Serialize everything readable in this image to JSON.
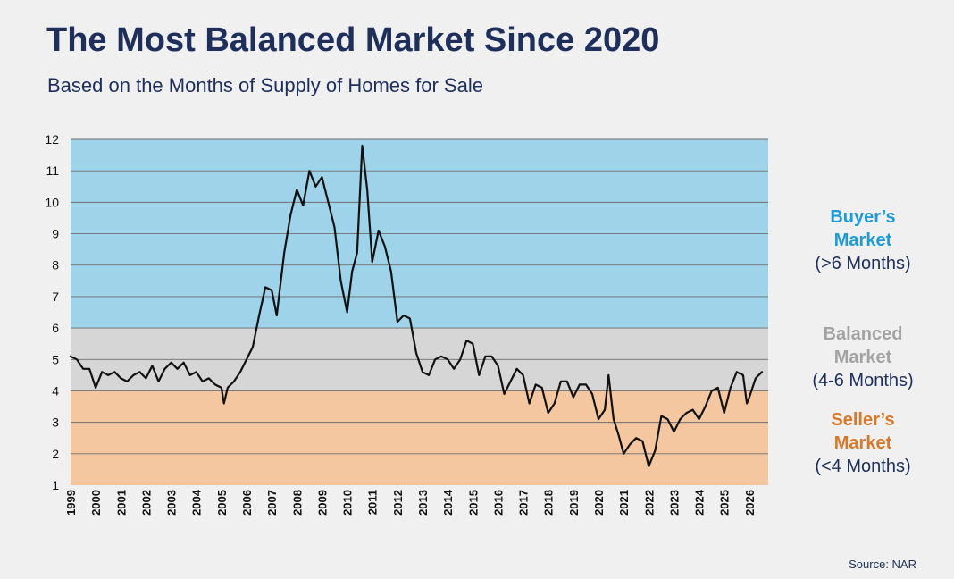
{
  "title": "The Most Balanced Market Since 2020",
  "subtitle": "Based on the Months of Supply of Homes for Sale",
  "source": "Source: NAR",
  "colors": {
    "buyers_zone": "#9ed3ea",
    "balanced_zone": "#d6d6d6",
    "sellers_zone": "#f4c7a1",
    "line": "#111111",
    "buyers_text": "#1e9bd7",
    "balanced_text": "#a3a3a3",
    "sellers_text": "#d9782a",
    "title_text": "#1f2f5c"
  },
  "legend": {
    "buyers": {
      "line1": "Buyer’s",
      "line2": "Market",
      "range": "(>6 Months)"
    },
    "balanced": {
      "line1": "Balanced",
      "line2": "Market",
      "range": "(4-6 Months)"
    },
    "sellers": {
      "line1": "Seller’s",
      "line2": "Market",
      "range": "(<4 Months)"
    }
  },
  "chart_data": {
    "type": "line",
    "title": "The Most Balanced Market Since 2020",
    "subtitle": "Based on the Months of Supply of Homes for Sale",
    "ylim": [
      1,
      12
    ],
    "xlim": [
      1999,
      2026.75
    ],
    "grid": true,
    "y_ticks": [
      1,
      2,
      3,
      4,
      5,
      6,
      7,
      8,
      9,
      10,
      11,
      12
    ],
    "x_tick_labels": [
      "1999",
      "2000",
      "2001",
      "2002",
      "2003",
      "2004",
      "2005",
      "2006",
      "2007",
      "2008",
      "2009",
      "2010",
      "2011",
      "2012",
      "2013",
      "2014",
      "2015",
      "2016",
      "2017",
      "2018",
      "2019",
      "2020",
      "2021",
      "2022",
      "2023",
      "2024",
      "2025",
      "2026"
    ],
    "bands": [
      {
        "name": "Seller’s Market",
        "from": 1,
        "to": 4
      },
      {
        "name": "Balanced Market",
        "from": 4,
        "to": 6
      },
      {
        "name": "Buyer’s Market",
        "from": 6,
        "to": 12
      }
    ],
    "series": [
      {
        "points": [
          [
            1999.0,
            5.1
          ],
          [
            1999.25,
            5.0
          ],
          [
            1999.5,
            4.7
          ],
          [
            1999.75,
            4.7
          ],
          [
            2000.0,
            4.1
          ],
          [
            2000.25,
            4.6
          ],
          [
            2000.5,
            4.5
          ],
          [
            2000.75,
            4.6
          ],
          [
            2001.0,
            4.4
          ],
          [
            2001.25,
            4.3
          ],
          [
            2001.5,
            4.5
          ],
          [
            2001.75,
            4.6
          ],
          [
            2002.0,
            4.4
          ],
          [
            2002.25,
            4.8
          ],
          [
            2002.5,
            4.3
          ],
          [
            2002.75,
            4.7
          ],
          [
            2003.0,
            4.9
          ],
          [
            2003.25,
            4.7
          ],
          [
            2003.5,
            4.9
          ],
          [
            2003.75,
            4.5
          ],
          [
            2004.0,
            4.6
          ],
          [
            2004.25,
            4.3
          ],
          [
            2004.5,
            4.4
          ],
          [
            2004.75,
            4.2
          ],
          [
            2005.0,
            4.1
          ],
          [
            2005.1,
            3.6
          ],
          [
            2005.25,
            4.1
          ],
          [
            2005.5,
            4.3
          ],
          [
            2005.75,
            4.6
          ],
          [
            2006.0,
            5.0
          ],
          [
            2006.25,
            5.4
          ],
          [
            2006.5,
            6.4
          ],
          [
            2006.75,
            7.3
          ],
          [
            2007.0,
            7.2
          ],
          [
            2007.2,
            6.4
          ],
          [
            2007.5,
            8.4
          ],
          [
            2007.75,
            9.6
          ],
          [
            2008.0,
            10.4
          ],
          [
            2008.25,
            9.9
          ],
          [
            2008.5,
            11.0
          ],
          [
            2008.75,
            10.5
          ],
          [
            2009.0,
            10.8
          ],
          [
            2009.25,
            10.0
          ],
          [
            2009.5,
            9.2
          ],
          [
            2009.75,
            7.5
          ],
          [
            2010.0,
            6.5
          ],
          [
            2010.2,
            7.8
          ],
          [
            2010.4,
            8.4
          ],
          [
            2010.6,
            11.8
          ],
          [
            2010.8,
            10.4
          ],
          [
            2011.0,
            8.1
          ],
          [
            2011.25,
            9.1
          ],
          [
            2011.5,
            8.6
          ],
          [
            2011.75,
            7.8
          ],
          [
            2012.0,
            6.2
          ],
          [
            2012.25,
            6.4
          ],
          [
            2012.5,
            6.3
          ],
          [
            2012.75,
            5.2
          ],
          [
            2013.0,
            4.6
          ],
          [
            2013.25,
            4.5
          ],
          [
            2013.5,
            5.0
          ],
          [
            2013.75,
            5.1
          ],
          [
            2014.0,
            5.0
          ],
          [
            2014.25,
            4.7
          ],
          [
            2014.5,
            5.0
          ],
          [
            2014.75,
            5.6
          ],
          [
            2015.0,
            5.5
          ],
          [
            2015.25,
            4.5
          ],
          [
            2015.5,
            5.1
          ],
          [
            2015.75,
            5.1
          ],
          [
            2016.0,
            4.8
          ],
          [
            2016.25,
            3.9
          ],
          [
            2016.5,
            4.3
          ],
          [
            2016.75,
            4.7
          ],
          [
            2017.0,
            4.5
          ],
          [
            2017.25,
            3.6
          ],
          [
            2017.5,
            4.2
          ],
          [
            2017.75,
            4.1
          ],
          [
            2018.0,
            3.3
          ],
          [
            2018.25,
            3.6
          ],
          [
            2018.5,
            4.3
          ],
          [
            2018.75,
            4.3
          ],
          [
            2019.0,
            3.8
          ],
          [
            2019.25,
            4.2
          ],
          [
            2019.5,
            4.2
          ],
          [
            2019.75,
            3.9
          ],
          [
            2020.0,
            3.1
          ],
          [
            2020.25,
            3.4
          ],
          [
            2020.4,
            4.5
          ],
          [
            2020.6,
            3.1
          ],
          [
            2020.8,
            2.6
          ],
          [
            2021.0,
            2.0
          ],
          [
            2021.25,
            2.3
          ],
          [
            2021.5,
            2.5
          ],
          [
            2021.75,
            2.4
          ],
          [
            2022.0,
            1.6
          ],
          [
            2022.25,
            2.1
          ],
          [
            2022.5,
            3.2
          ],
          [
            2022.75,
            3.1
          ],
          [
            2023.0,
            2.7
          ],
          [
            2023.25,
            3.1
          ],
          [
            2023.5,
            3.3
          ],
          [
            2023.75,
            3.4
          ],
          [
            2024.0,
            3.1
          ],
          [
            2024.25,
            3.5
          ],
          [
            2024.5,
            4.0
          ],
          [
            2024.75,
            4.1
          ],
          [
            2025.0,
            3.3
          ],
          [
            2025.25,
            4.1
          ],
          [
            2025.5,
            4.6
          ],
          [
            2025.75,
            4.5
          ],
          [
            2025.9,
            3.6
          ],
          [
            2026.0,
            3.8
          ],
          [
            2026.25,
            4.4
          ],
          [
            2026.5,
            4.6
          ]
        ]
      }
    ]
  }
}
